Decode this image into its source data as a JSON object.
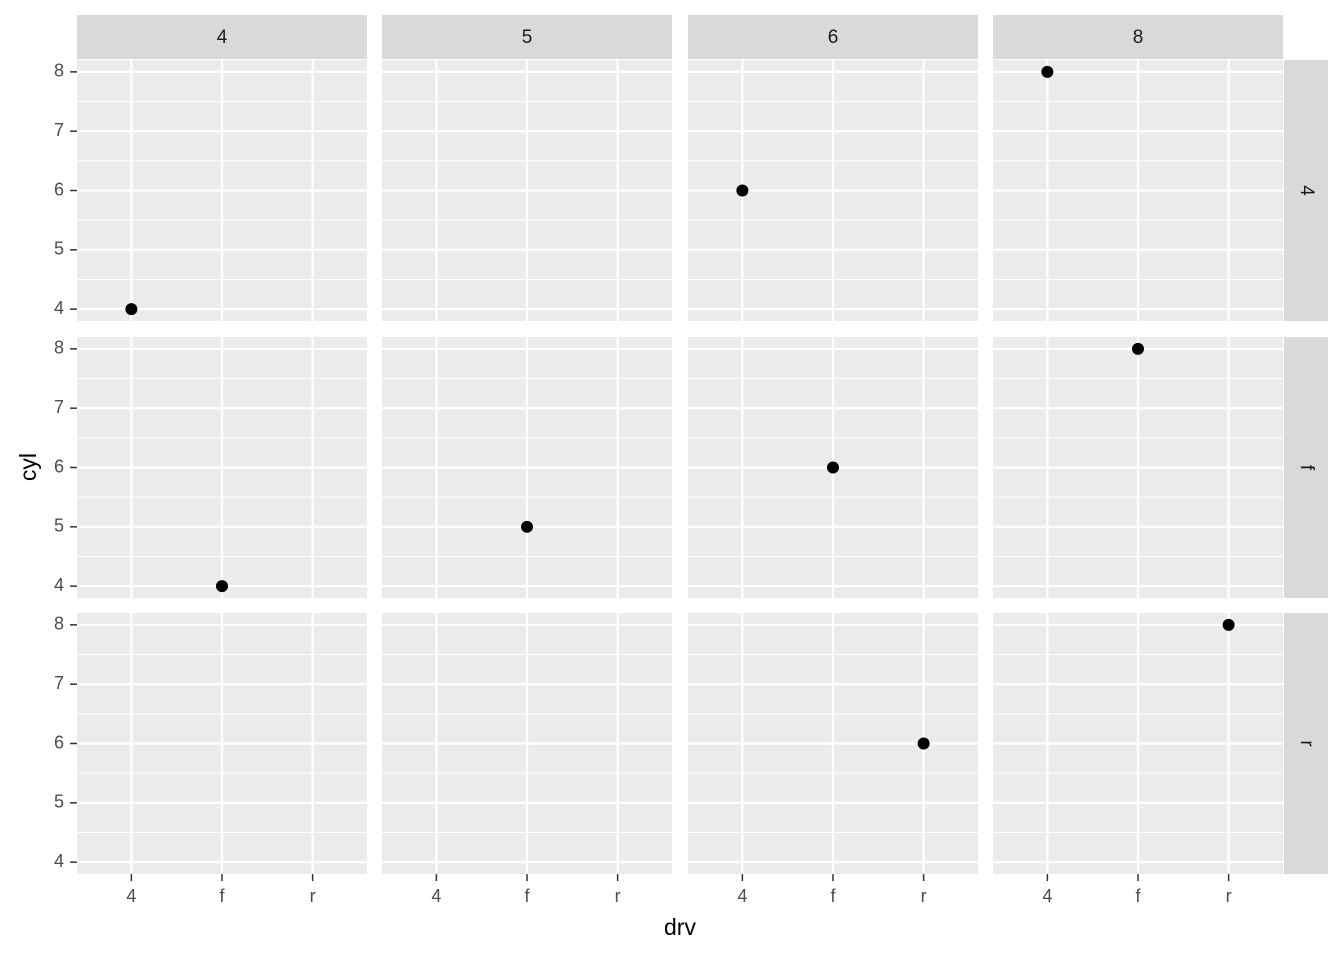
{
  "chart_data": {
    "type": "scatter",
    "x_label": "drv",
    "y_label": "cyl",
    "categories": [
      "4",
      "f",
      "r"
    ],
    "ylim": [
      3.8,
      8.2
    ],
    "yticks": [
      4,
      5,
      6,
      7,
      8
    ],
    "grid": true,
    "color": "#000000",
    "facet_cols": [
      "4",
      "5",
      "6",
      "8"
    ],
    "facet_rows": [
      {
        "label": "4",
        "panels": [
          {
            "x": [
              "4"
            ],
            "values": [
              4
            ]
          },
          {
            "x": [],
            "values": []
          },
          {
            "x": [
              "4"
            ],
            "values": [
              6
            ]
          },
          {
            "x": [
              "4"
            ],
            "values": [
              8
            ]
          }
        ]
      },
      {
        "label": "f",
        "panels": [
          {
            "x": [
              "f"
            ],
            "values": [
              4
            ]
          },
          {
            "x": [
              "f"
            ],
            "values": [
              5
            ]
          },
          {
            "x": [
              "f"
            ],
            "values": [
              6
            ]
          },
          {
            "x": [
              "f"
            ],
            "values": [
              8
            ]
          }
        ]
      },
      {
        "label": "r",
        "panels": [
          {
            "x": [],
            "values": []
          },
          {
            "x": [],
            "values": []
          },
          {
            "x": [
              "r"
            ],
            "values": [
              6
            ]
          },
          {
            "x": [
              "r"
            ],
            "values": [
              8
            ]
          }
        ]
      }
    ]
  }
}
